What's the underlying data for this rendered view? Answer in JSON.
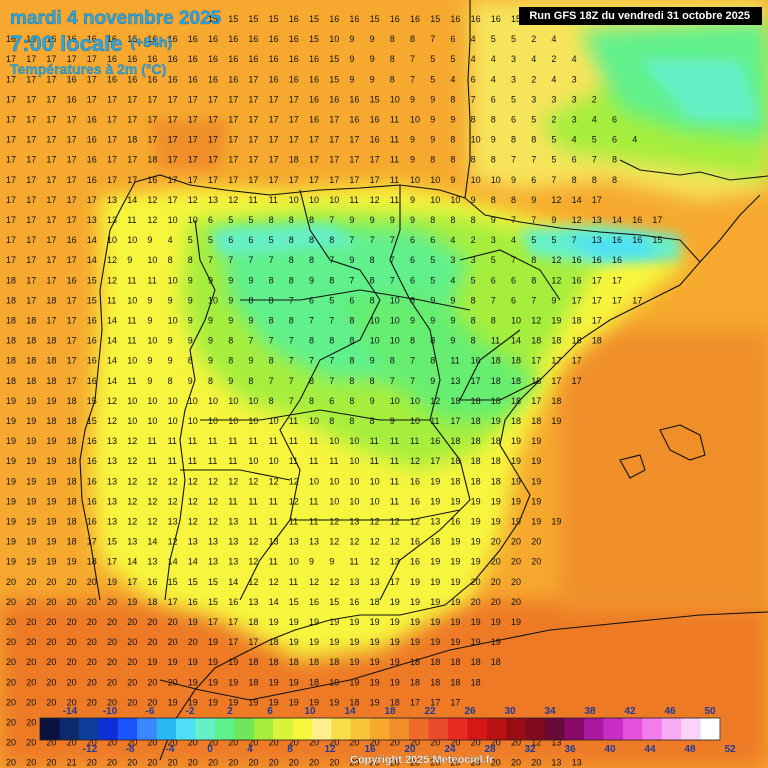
{
  "header": {
    "date_line": "mardi 4 novembre 2025",
    "time_line": "7:00 locale",
    "lead_time": "(+84h)",
    "variable": "Températures à 2m (°C)"
  },
  "run_info": "Run GFS 18Z du vendredi 31 octobre 2025",
  "copyright": "Copyright 2025 Meteociel.fr",
  "legend": {
    "top_labels": [
      "-14",
      "-10",
      "-6",
      "-2",
      "2",
      "6",
      "10",
      "14",
      "18",
      "22",
      "26",
      "30",
      "34",
      "38",
      "42",
      "46",
      "50"
    ],
    "bottom_labels": [
      "-12",
      "-8",
      "-4",
      "0",
      "4",
      "8",
      "12",
      "16",
      "20",
      "24",
      "28",
      "32",
      "36",
      "40",
      "44",
      "48",
      "52"
    ],
    "colors": [
      "#0b1240",
      "#0c2a6b",
      "#0a3d9c",
      "#0d2fd6",
      "#1c52ff",
      "#3a87ff",
      "#2ab8f2",
      "#4fe0f5",
      "#66f0c8",
      "#60f08c",
      "#6ee85a",
      "#a6ee3c",
      "#d8f43a",
      "#f7f53c",
      "#fbf08a",
      "#f9dc4a",
      "#f7c438",
      "#f6a92e",
      "#f08f2a",
      "#ec6b28",
      "#e84a2a",
      "#ea2b24",
      "#d41818",
      "#b81212",
      "#9a0c14",
      "#7e0a1c",
      "#6a0a3a",
      "#8a0a6a",
      "#a818a0",
      "#c82ec4",
      "#e650dc",
      "#f47cec",
      "#f8aaf4",
      "#fbd2f8",
      "#ffffff"
    ]
  },
  "grid_rows": [
    "15 15 15 15 16 15 16 16 15 16 16 15 16 16 16 15 16 16 16 15 16",
    "16 16 16 16 16 16 16 16 16 16 16 16 16 16 16 15 10 9 9 8 8 7 6 4 5 5 2 4",
    "17 17 17 17 17 16 16 16 16 16 16 16 16 16 16 16 15 9 9 8 7 5 5 4 4 3 4 2 4",
    "17 17 17 16 17 16 16 16 16 16 16 16 17 16 16 16 15 9 9 8 7 5 4 6 4 3 2 4 3",
    "17 17 17 16 17 17 17 17 17 17 17 17 17 17 17 16 16 16 15 10 9 9 8 7 6 5 3 3 3 2",
    "17 17 17 17 16 17 17 17 17 17 17 17 17 17 17 16 17 16 16 11 10 9 9 8 8 6 5 2 3 4 6",
    "17 17 17 17 16 17 18 17 17 17 17 17 17 17 17 17 17 17 16 11 9 9 8 10 9 8 8 5 4 5 6 4",
    "17 17 17 17 16 17 17 18 17 17 17 17 17 17 18 17 17 17 17 11 9 8 8 8 8 7 7 5 6 7 8",
    "17 17 17 17 16 17 17 16 17 17 17 17 17 17 17 17 17 17 17 11 10 10 9 10 10 9 6 7 8 8 8",
    "17 17 17 17 17 13 14 12 17 12 13 12 11 11 10 10 10 11 12 11 9 10 10 9 8 8 9 12 14 17",
    "17 17 17 17 13 13 11 12 10 10 6 5 5 8 8 8 7 9 9 9 9 8 8 8 9 7 7 9 12 13 14 16 17",
    "17 17 17 16 14 10 10 9 4 5 5 6 6 5 8 8 8 7 7 7 6 6 4 2 3 4 5 5 7 13 16 16 15",
    "17 17 17 17 14 12 9 10 8 8 7 7 7 7 8 8 7 9 8 7 6 5 3 3 5 7 8 12 16 16 16",
    "18 17 17 16 15 12 11 11 10 9 9 9 9 8 8 9 8 7 8 7 6 5 4 5 6 6 8 12 16 17 17",
    "18 17 18 17 15 11 10 9 9 9 10 9 8 8 7 6 5 6 8 10 8 9 9 8 7 6 7 9 17 17 17 17",
    "18 18 17 17 16 14 11 9 10 9 9 9 9 8 8 7 7 8 10 10 9 9 9 8 8 10 12 19 18 17",
    "18 18 18 17 16 14 11 10 9 9 9 8 7 7 7 8 8 8 10 10 8 8 9 8 11 14 18 18 18 18",
    "18 18 18 17 16 14 10 9 9 8 9 8 9 8 7 7 7 8 9 8 7 8 11 16 18 18 17 17 17",
    "18 18 18 17 16 14 11 9 8 9 8 9 8 7 7 8 7 8 8 7 7 9 13 17 18 18 18 17 17",
    "19 19 19 18 15 12 10 10 10 10 10 10 10 8 7 8 6 8 9 10 10 12 18 18 18 18 17 18",
    "19 19 18 18 15 12 10 10 10 10 10 10 10 10 11 10 8 8 8 9 10 11 17 18 19 18 18 19",
    "19 19 19 18 16 13 12 11 11 11 11 11 11 11 11 11 10 10 11 11 11 16 18 18 18 19 19",
    "19 19 19 18 16 13 12 11 11 11 11 11 10 10 11 11 11 10 11 11 12 17 18 18 18 19 19",
    "19 19 19 18 16 13 12 12 12 12 12 12 12 12 12 10 10 10 10 11 16 19 18 18 18 19 19",
    "19 19 19 18 16 13 12 12 12 12 12 11 11 11 12 11 10 10 10 11 16 19 19 19 19 19 19",
    "19 19 19 18 16 13 12 12 13 12 12 13 11 11 11 11 12 13 12 12 12 13 16 19 19 19 19 19",
    "19 19 19 18 17 15 13 14 12 13 13 13 12 13 13 13 12 12 12 12 16 18 19 19 20 20 20",
    "19 19 19 19 18 17 14 13 14 14 13 13 12 11 10 9 9 11 12 13 16 19 19 19 20 20 20",
    "20 20 20 20 20 19 17 16 15 15 15 14 12 12 11 12 12 13 13 17 19 19 19 20 20 20",
    "20 20 20 20 20 20 19 18 17 16 15 16 13 14 15 16 15 16 18 19 19 19 19 20 20 20",
    "20 20 20 20 20 20 20 20 20 19 17 17 18 19 19 19 19 19 19 19 19 19 19 19 19 19",
    "20 20 20 20 20 20 20 20 20 20 19 17 17 18 19 19 19 19 19 19 19 19 19 19 19",
    "20 20 20 20 20 20 20 19 19 19 19 19 18 18 18 18 18 19 19 19 18 18 18 18 18",
    "20 20 20 20 20 20 20 20 20 19 19 19 18 19 19 18 19 19 19 19 18 18 18 18",
    "20 20 20 20 20 20 20 20 19 19 19 19 19 19 19 19 19 18 19 18 17 17 17",
    "20 20 20 20 20 20 20 20 20 19 19 19 19 20 19 19 19 19 18 18 17 17",
    "20 20 20 20 20 20 20 20 20 20 20 20 20 20 20 20 20 20 20 20 20 20 20 20 20 20 12 13",
    "20 20 20 21 20 20 20 20 20 20 20 20 20 20 20 20 20 20 20 20 20 20 20 20 20 20 20 13 13"
  ]
}
